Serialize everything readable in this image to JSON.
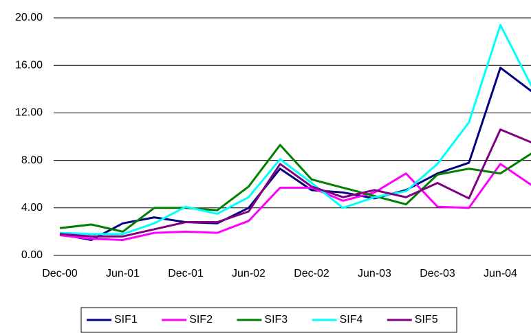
{
  "chart_data": {
    "type": "line",
    "categories": [
      "Dec-00",
      null,
      "Jun-01",
      null,
      "Dec-01",
      null,
      "Jun-02",
      null,
      "Dec-02",
      null,
      "Jun-03",
      null,
      "Dec-03",
      null,
      "Jun-04",
      null
    ],
    "series": [
      {
        "name": "SIF1",
        "color": "#000080",
        "values": [
          1.8,
          1.3,
          2.7,
          3.2,
          2.8,
          2.7,
          4.0,
          7.3,
          5.5,
          5.3,
          4.8,
          5.5,
          6.9,
          7.8,
          15.8,
          13.8
        ]
      },
      {
        "name": "SIF2",
        "color": "#ff00ff",
        "values": [
          1.7,
          1.4,
          1.3,
          1.9,
          2.0,
          1.9,
          2.9,
          5.7,
          5.7,
          4.6,
          5.3,
          6.9,
          4.1,
          4.0,
          7.7,
          5.9
        ]
      },
      {
        "name": "SIF3",
        "color": "#008000",
        "values": [
          2.3,
          2.6,
          2.0,
          4.0,
          4.0,
          3.8,
          5.8,
          9.3,
          6.4,
          5.7,
          5.0,
          4.3,
          6.8,
          7.3,
          6.9,
          8.6
        ]
      },
      {
        "name": "SIF4",
        "color": "#00ffff",
        "values": [
          1.9,
          1.8,
          1.8,
          2.7,
          4.1,
          3.5,
          4.9,
          8.1,
          6.1,
          4.0,
          4.9,
          5.4,
          7.7,
          11.2,
          19.4,
          14.2
        ]
      },
      {
        "name": "SIF5",
        "color": "#800080",
        "values": [
          1.8,
          1.6,
          1.6,
          2.2,
          2.8,
          2.8,
          3.7,
          7.7,
          5.8,
          4.9,
          5.5,
          4.9,
          6.1,
          4.8,
          10.6,
          9.5
        ]
      }
    ],
    "ylim": [
      0,
      20
    ],
    "yticks": [
      {
        "value": 0,
        "label": "0.00"
      },
      {
        "value": 4,
        "label": "4.00"
      },
      {
        "value": 8,
        "label": "8.00"
      },
      {
        "value": 12,
        "label": "12.00"
      },
      {
        "value": 16,
        "label": "16.00"
      },
      {
        "value": 20,
        "label": "20.00"
      }
    ],
    "grid": true,
    "legend": "bottom"
  }
}
